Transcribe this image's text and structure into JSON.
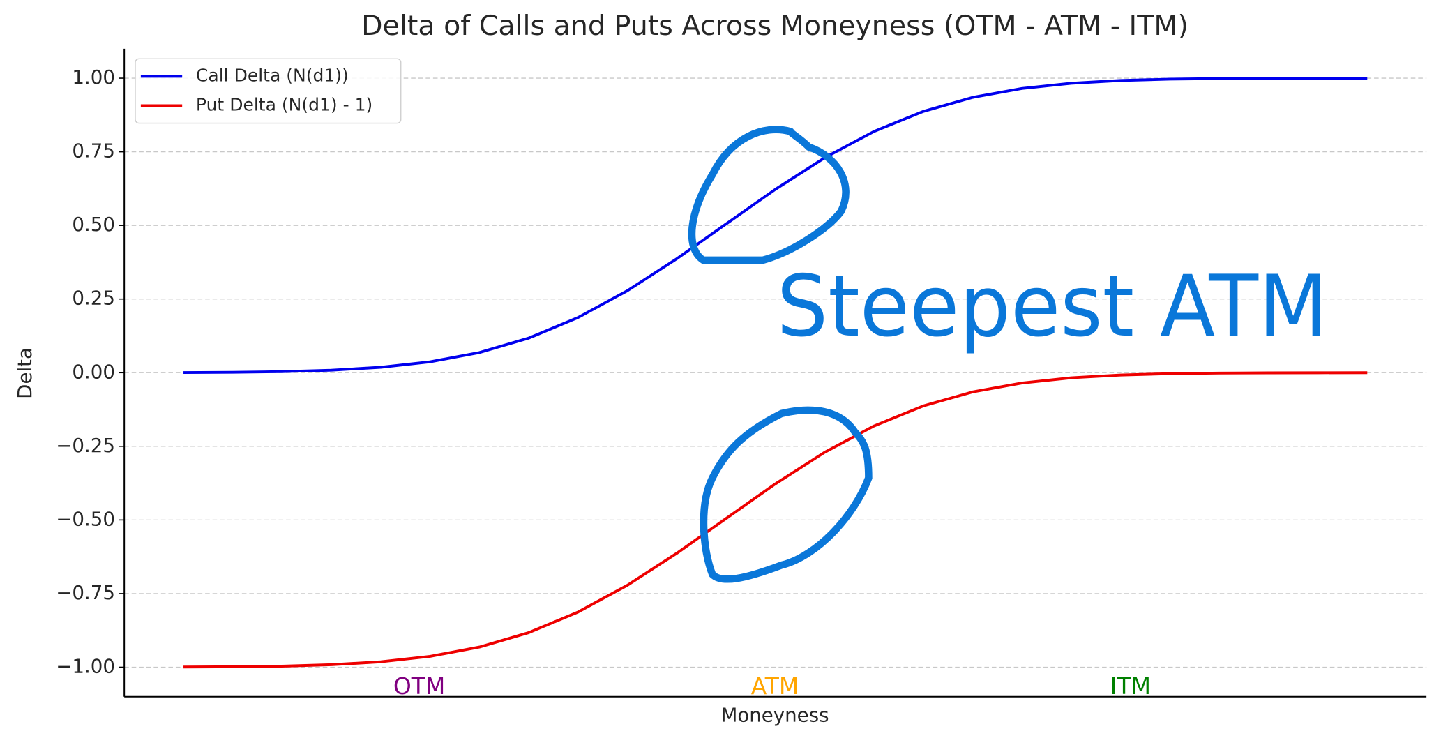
{
  "chart_data": {
    "type": "line",
    "title": "Delta of Calls and Puts Across Moneyness (OTM - ATM - ITM)",
    "xlabel": "Moneyness",
    "ylabel": "Delta",
    "x": [
      -3,
      -2.75,
      -2.5,
      -2.25,
      -2,
      -1.75,
      -1.5,
      -1.25,
      -1,
      -0.75,
      -0.5,
      -0.25,
      0,
      0.25,
      0.5,
      0.75,
      1,
      1.25,
      1.5,
      1.75,
      2,
      2.25,
      2.5,
      2.75,
      3
    ],
    "series": [
      {
        "name": "Call Delta (N(d1))",
        "color": "#0000ee",
        "values": [
          0.0005,
          0.0014,
          0.0036,
          0.0085,
          0.0184,
          0.0369,
          0.0684,
          0.1174,
          0.1873,
          0.2783,
          0.3867,
          0.5048,
          0.6225,
          0.7297,
          0.8191,
          0.8872,
          0.9347,
          0.965,
          0.9827,
          0.9921,
          0.9967,
          0.9987,
          0.9995,
          0.9998,
          1.0
        ]
      },
      {
        "name": "Put Delta (N(d1) - 1)",
        "color": "#ee0000",
        "values": [
          -0.9995,
          -0.9986,
          -0.9964,
          -0.9915,
          -0.9816,
          -0.9631,
          -0.9316,
          -0.8826,
          -0.8127,
          -0.7217,
          -0.6133,
          -0.4952,
          -0.3775,
          -0.2703,
          -0.1809,
          -0.1128,
          -0.0653,
          -0.035,
          -0.0173,
          -0.0079,
          -0.0033,
          -0.0013,
          -0.0005,
          -0.0002,
          0.0
        ]
      }
    ],
    "xlim": [
      -3.3,
      3.3
    ],
    "ylim": [
      -1.1,
      1.1
    ],
    "yticks": [
      {
        "value": -1,
        "label": "−1.00"
      },
      {
        "value": -0.75,
        "label": "−0.75"
      },
      {
        "value": -0.5,
        "label": "−0.50"
      },
      {
        "value": -0.25,
        "label": "−0.25"
      },
      {
        "value": 0,
        "label": "0.00"
      },
      {
        "value": 0.25,
        "label": "0.25"
      },
      {
        "value": 0.5,
        "label": "0.50"
      },
      {
        "value": 0.75,
        "label": "0.75"
      },
      {
        "value": 1,
        "label": "1.00"
      }
    ],
    "grid": true,
    "legend": "upper left",
    "annotations": [
      {
        "text": "OTM",
        "color": "purple"
      },
      {
        "text": "ATM",
        "color": "orange"
      },
      {
        "text": "ITM",
        "color": "green"
      }
    ],
    "handwritten_note": "Steepest ATM"
  }
}
